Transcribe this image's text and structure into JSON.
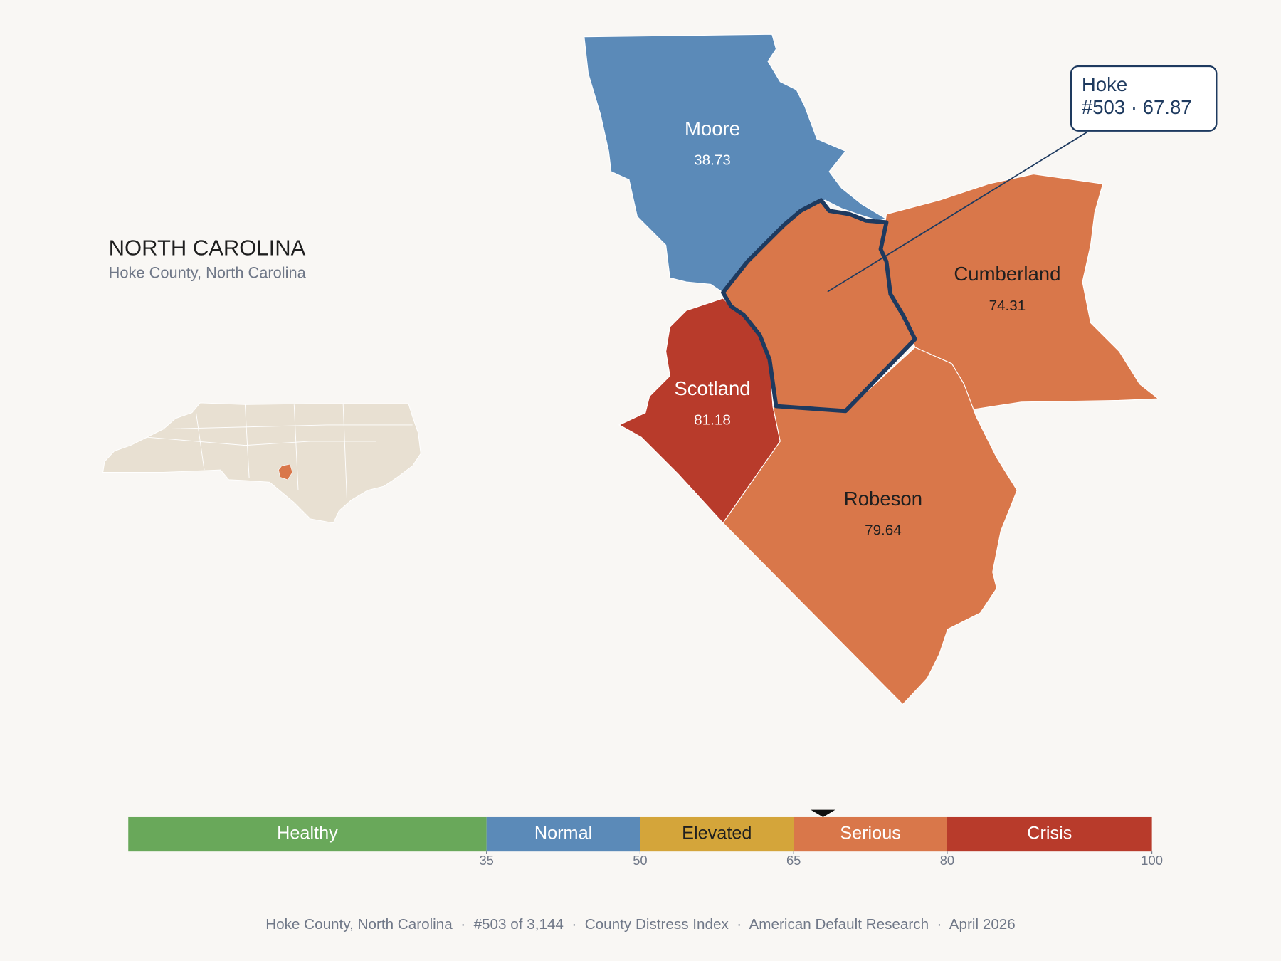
{
  "header": {
    "title": "NORTH CAROLINA",
    "subtitle": "Hoke County, North Carolina"
  },
  "counties": [
    {
      "name": "Moore",
      "value": 38.73,
      "color": "#5b8ab8",
      "text_color": "#ffffff"
    },
    {
      "name": "Cumberland",
      "value": 74.31,
      "color": "#d9774a",
      "text_color": "#1f1f1f"
    },
    {
      "name": "Scotland",
      "value": 81.18,
      "color": "#b83b2b",
      "text_color": "#ffffff"
    },
    {
      "name": "Robeson",
      "value": 79.64,
      "color": "#d9774a",
      "text_color": "#1f1f1f"
    }
  ],
  "focus": {
    "name": "Hoke",
    "detail": "#503 · 67.87",
    "color": "#d9774a"
  },
  "legend": {
    "range": [
      0,
      100
    ],
    "ticks": [
      35,
      50,
      65,
      80,
      100
    ],
    "marker": 67.87,
    "bands": [
      {
        "name": "Healthy",
        "color": "#69a85a",
        "text_color": "#ffffff"
      },
      {
        "name": "Normal",
        "color": "#5b8ab8",
        "text_color": "#ffffff"
      },
      {
        "name": "Elevated",
        "color": "#d4a53a",
        "text_color": "#1f1f1f"
      },
      {
        "name": "Serious",
        "color": "#d9774a",
        "text_color": "#ffffff"
      },
      {
        "name": "Crisis",
        "color": "#b83b2b",
        "text_color": "#ffffff"
      }
    ]
  },
  "footer": "Hoke County, North Carolina  ·  #503 of 3,144  ·  County Distress Index  ·  American Default Research  ·  April 2026"
}
